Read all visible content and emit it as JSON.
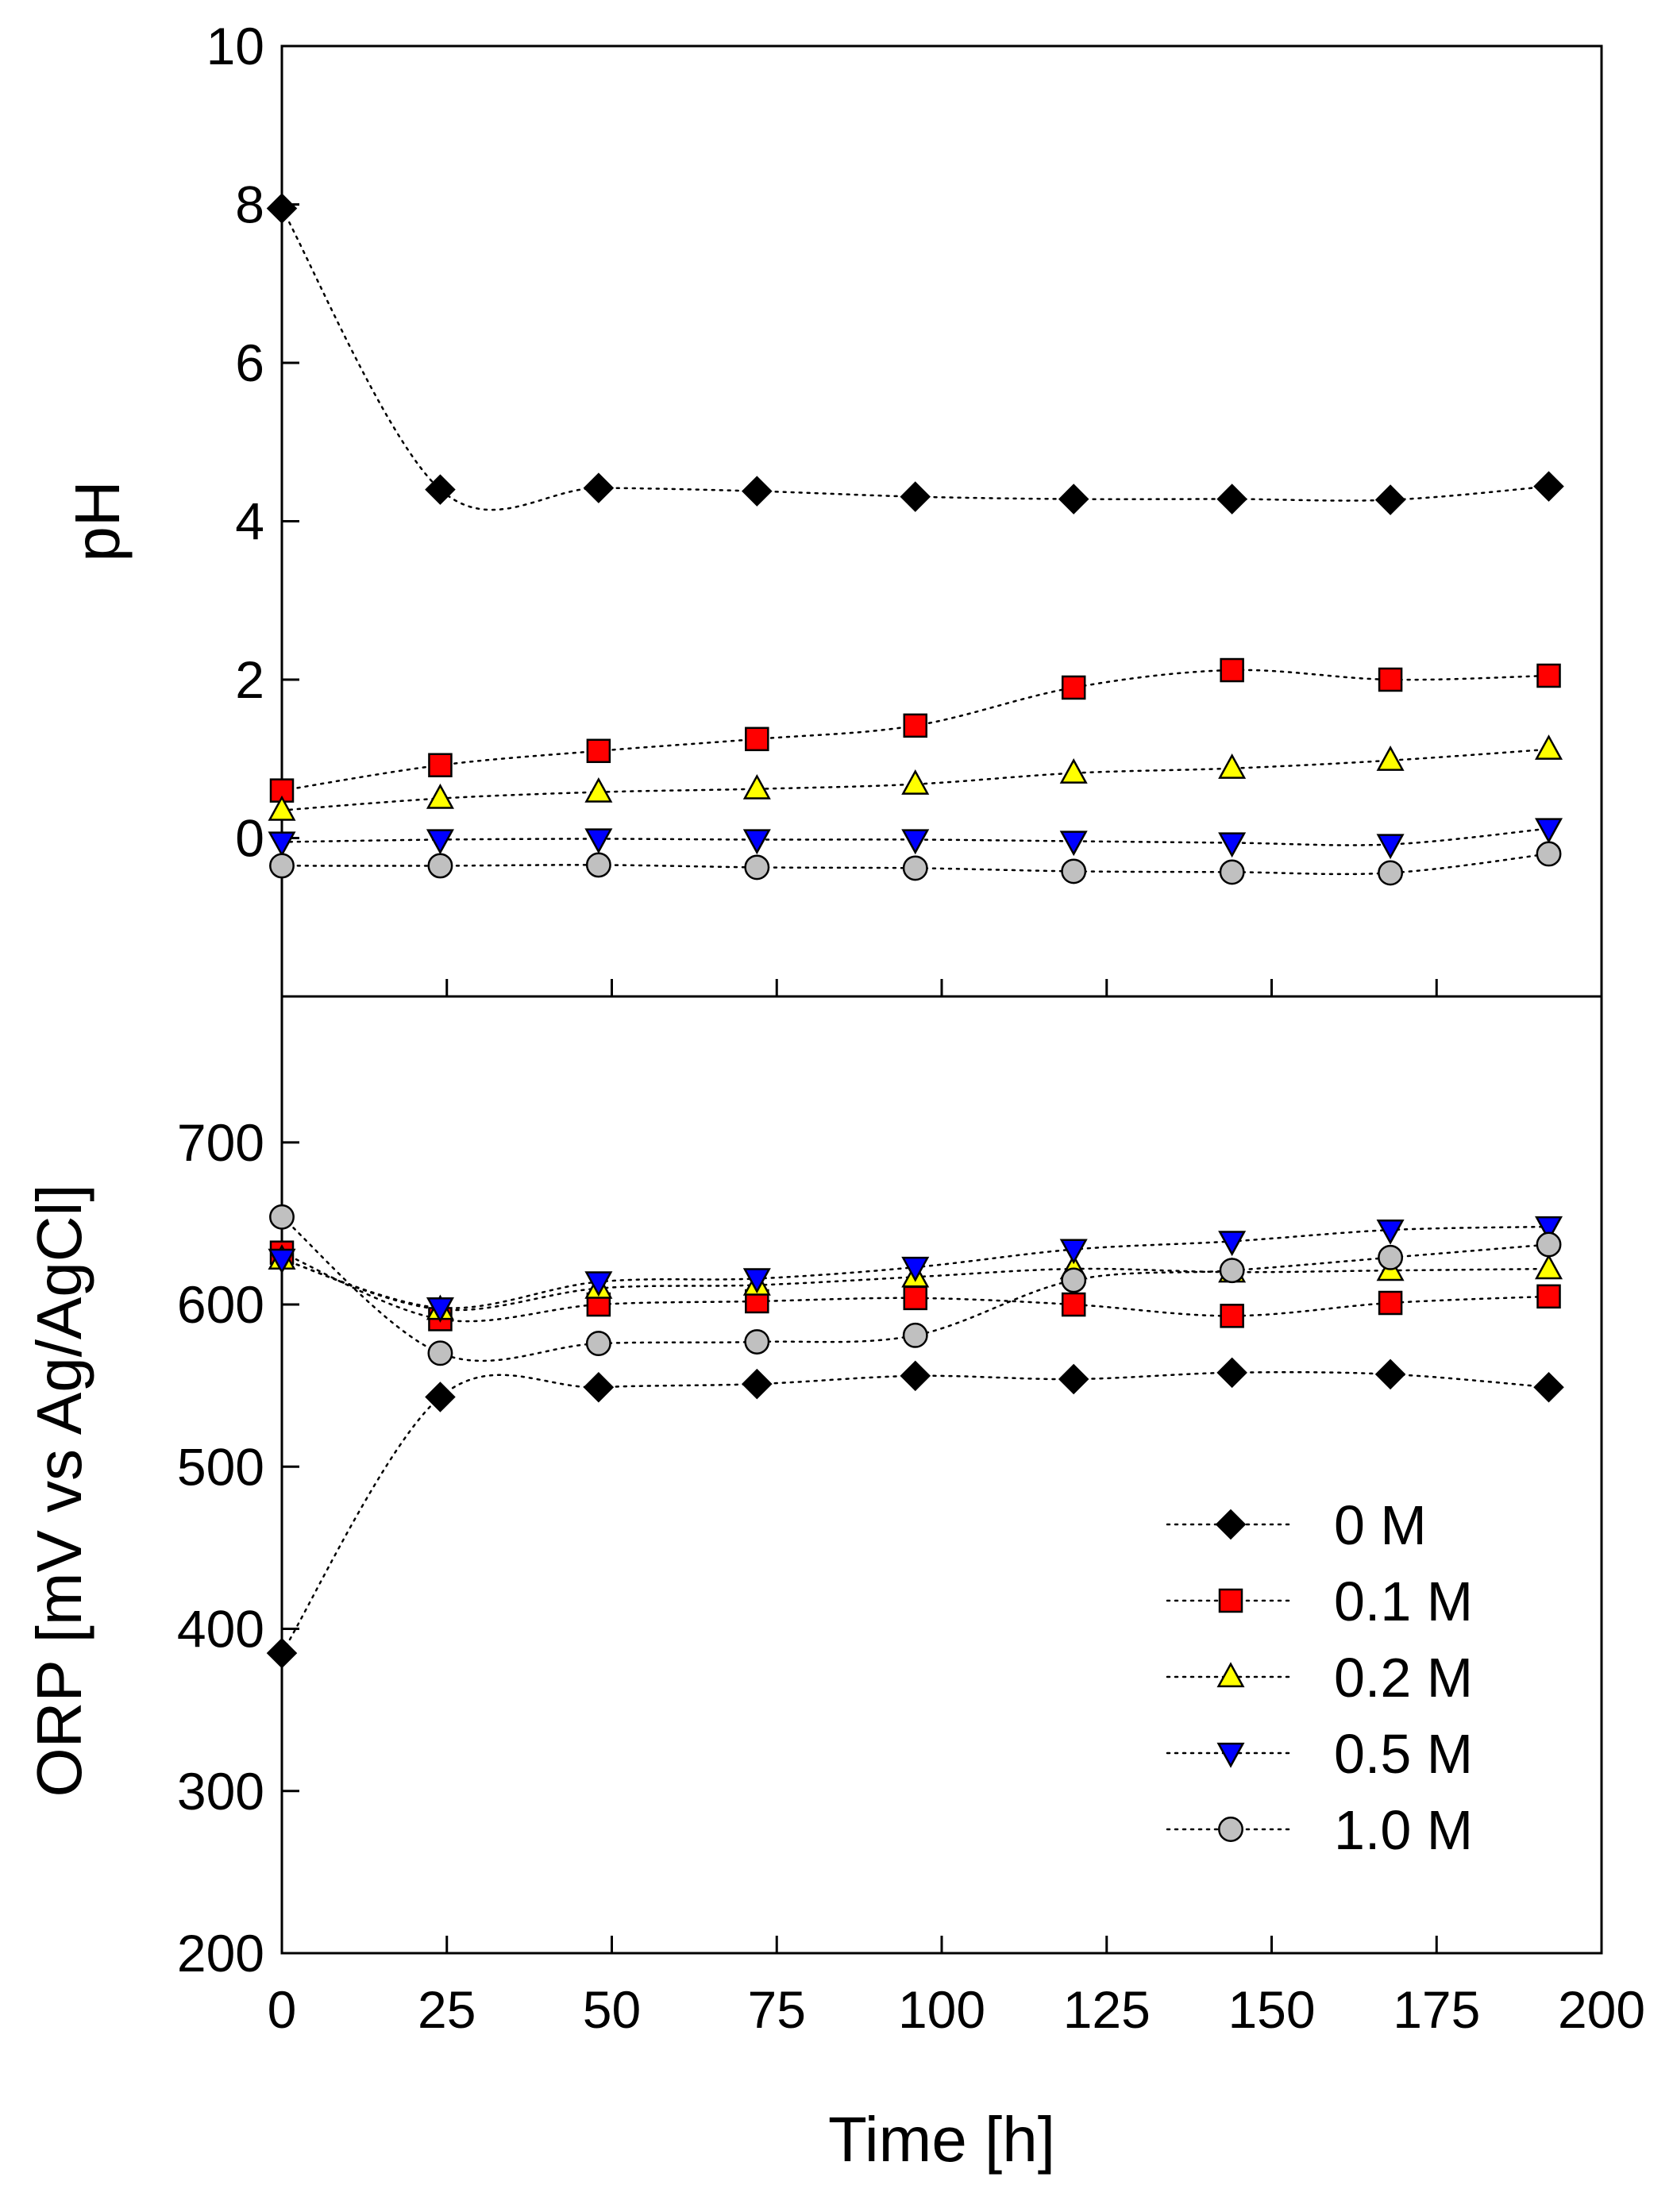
{
  "chart_data": [
    {
      "type": "line",
      "panel": "top",
      "ylabel": "pH",
      "xlim": [
        0,
        200
      ],
      "ylim": [
        -2,
        10
      ],
      "yticks": [
        0,
        2,
        4,
        6,
        8,
        10
      ],
      "x": [
        0,
        24,
        48,
        72,
        96,
        120,
        144,
        168,
        192
      ],
      "series": [
        {
          "name": "0 M",
          "marker": "diamond",
          "color": "#000000",
          "values": [
            7.95,
            4.4,
            4.42,
            4.38,
            4.31,
            4.28,
            4.28,
            4.27,
            4.44
          ]
        },
        {
          "name": "0.1 M",
          "marker": "square",
          "color": "#ff0000",
          "values": [
            0.6,
            0.92,
            1.1,
            1.25,
            1.42,
            1.9,
            2.12,
            2.0,
            2.05
          ]
        },
        {
          "name": "0.2 M",
          "marker": "triangle-up",
          "color": "#ffff00",
          "values": [
            0.35,
            0.5,
            0.58,
            0.62,
            0.68,
            0.82,
            0.88,
            0.98,
            1.12
          ]
        },
        {
          "name": "0.5 M",
          "marker": "triangle-down",
          "color": "#0000ff",
          "values": [
            -0.05,
            -0.02,
            -0.01,
            -0.02,
            -0.02,
            -0.04,
            -0.06,
            -0.08,
            0.12
          ]
        },
        {
          "name": "1.0 M",
          "marker": "circle",
          "color": "#c0c0c0",
          "values": [
            -0.35,
            -0.35,
            -0.34,
            -0.37,
            -0.38,
            -0.42,
            -0.43,
            -0.44,
            -0.2
          ]
        }
      ]
    },
    {
      "type": "line",
      "panel": "bottom",
      "ylabel": "ORP [mV vs Ag/AgCl]",
      "xlabel": "Time [h]",
      "xlim": [
        0,
        200
      ],
      "ylim": [
        200,
        790
      ],
      "xticks": [
        0,
        25,
        50,
        75,
        100,
        125,
        150,
        175,
        200
      ],
      "yticks": [
        200,
        300,
        400,
        500,
        600,
        700
      ],
      "x": [
        0,
        24,
        48,
        72,
        96,
        120,
        144,
        168,
        192
      ],
      "legend_position": "bottom-right",
      "series": [
        {
          "name": "0 M",
          "marker": "diamond",
          "color": "#000000",
          "values": [
            385,
            543,
            549,
            551,
            556,
            554,
            558,
            557,
            549
          ]
        },
        {
          "name": "0.1 M",
          "marker": "square",
          "color": "#ff0000",
          "values": [
            632,
            591,
            600,
            602,
            604,
            600,
            593,
            601,
            605
          ]
        },
        {
          "name": "0.2 M",
          "marker": "triangle-up",
          "color": "#ffff00",
          "values": [
            628,
            597,
            610,
            612,
            617,
            622,
            620,
            621,
            622
          ]
        },
        {
          "name": "0.5 M",
          "marker": "triangle-down",
          "color": "#0000ff",
          "values": [
            628,
            598,
            614,
            616,
            623,
            634,
            639,
            646,
            648
          ]
        },
        {
          "name": "1.0 M",
          "marker": "circle",
          "color": "#c0c0c0",
          "values": [
            654,
            570,
            576,
            577,
            581,
            615,
            621,
            629,
            637
          ]
        }
      ]
    }
  ]
}
